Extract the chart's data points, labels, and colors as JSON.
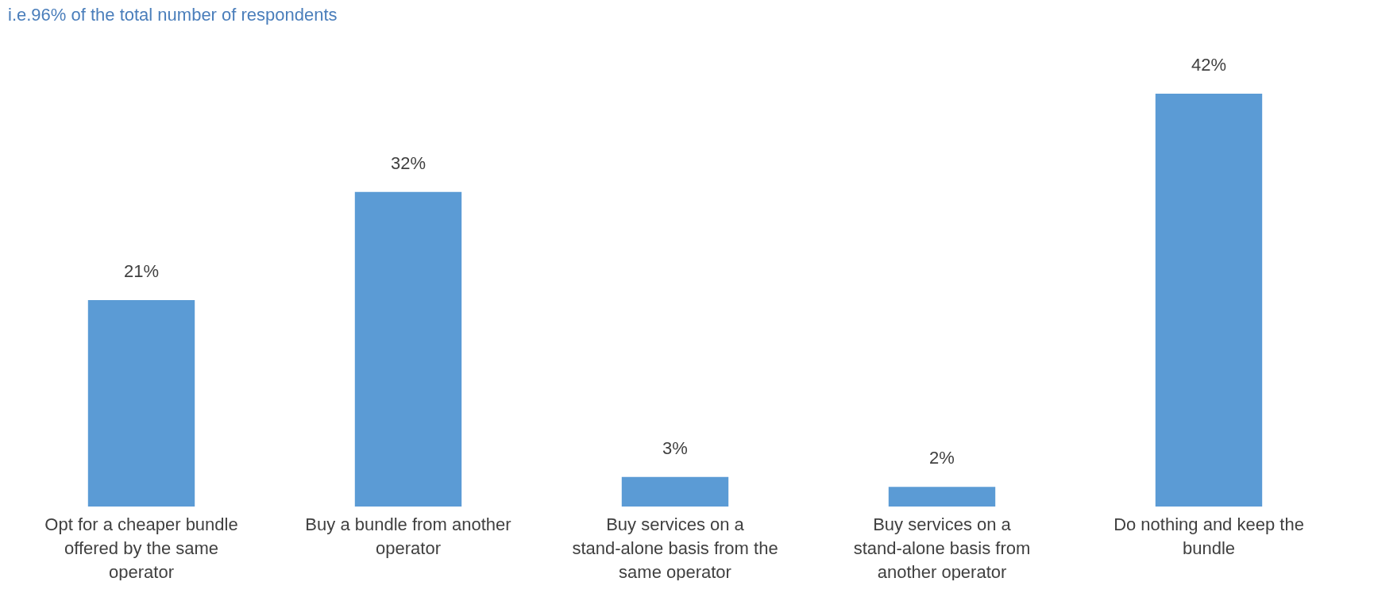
{
  "chart_data": {
    "type": "bar",
    "title": "i.e.96% of the total number of respondents",
    "categories": [
      "Opt for a cheaper bundle offered by the same operator",
      "Buy a bundle from another operator",
      "Buy services on a stand-alone basis from the same operator",
      "Buy services on a stand-alone basis from another operator",
      "Do nothing and keep the bundle"
    ],
    "values": [
      21,
      32,
      3,
      2,
      42
    ],
    "color": "#5b9bd5",
    "value_labels": [
      "21%",
      "32%",
      "3%",
      "2%",
      "42%"
    ],
    "grid": false
  }
}
